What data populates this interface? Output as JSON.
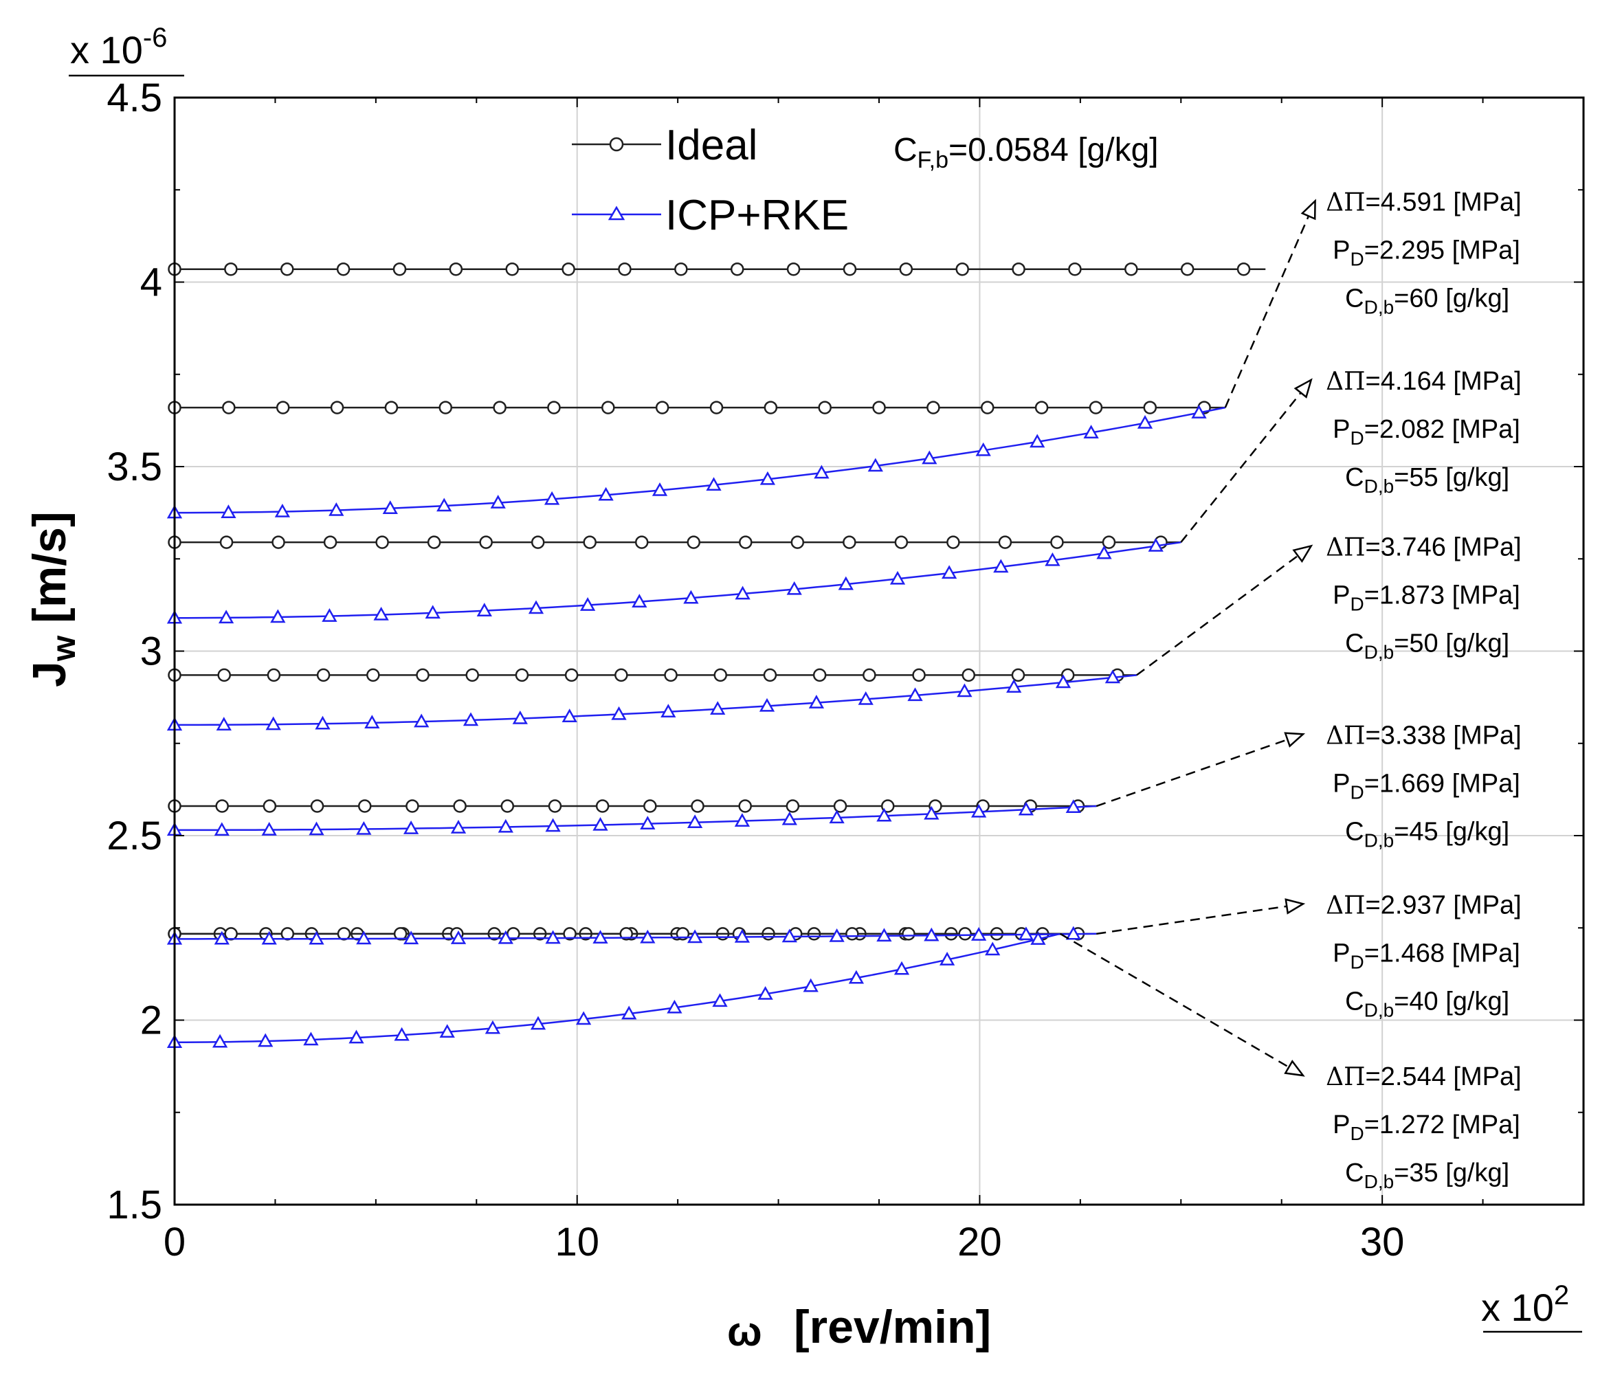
{
  "colors": {
    "ideal": "#202020",
    "icp": "#1f1ff0",
    "grid": "#d2d2d2",
    "axis": "#000000"
  },
  "chart_data": {
    "type": "line",
    "xlabel_symbol": "ω",
    "xlabel_unit": "[rev/min]",
    "x_multiplier": "x 10",
    "x_multiplier_exp": "2",
    "ylabel_main": "J",
    "ylabel_sub": "w",
    "ylabel_unit": "[m/s]",
    "y_multiplier": "x 10",
    "y_multiplier_exp": "-6",
    "xlim": [
      0,
      35
    ],
    "ylim": [
      1.5,
      4.5
    ],
    "xticks": [
      0,
      10,
      20,
      30
    ],
    "xtick_labels": [
      "0",
      "10",
      "20",
      "30"
    ],
    "yticks": [
      1.5,
      2,
      2.5,
      3,
      3.5,
      4,
      4.5
    ],
    "ytick_labels": [
      "1.5",
      "2",
      "2.5",
      "3",
      "3.5",
      "4",
      "4.5"
    ],
    "grid": true,
    "legend": [
      {
        "label": "Ideal",
        "marker": "circle"
      },
      {
        "label": "ICP+RKE",
        "marker": "triangle"
      }
    ],
    "feed_annotation": {
      "prefix": "C",
      "sub": "F,b",
      "text": "=0.0584 [g/kg]"
    },
    "cases": [
      {
        "ideal": 2.234,
        "icp_start": 1.94,
        "x_end": 22.0,
        "n_ideal": 20,
        "n_icp": 20,
        "dpi": "=2.544 [MPa]",
        "pd": "=1.272 [MPa]",
        "cdb": "=35 [g/kg]",
        "arrow_target": [
          28.0,
          1.85
        ]
      },
      {
        "ideal": 2.234,
        "icp_start": 2.22,
        "x_end": 22.9,
        "n_ideal": 17,
        "n_icp": 20,
        "dpi": "=2.937 [MPa]",
        "pd": "=1.468 [MPa]",
        "cdb": "=40 [g/kg]",
        "arrow_target": [
          28.0,
          2.315
        ]
      },
      {
        "ideal": 2.58,
        "icp_start": 2.515,
        "x_end": 22.9,
        "n_ideal": 20,
        "n_icp": 20,
        "dpi": "=3.338 [MPa]",
        "pd": "=1.669 [MPa]",
        "cdb": "=45 [g/kg]",
        "arrow_target": [
          28.0,
          2.775
        ]
      },
      {
        "ideal": 2.935,
        "icp_start": 2.8,
        "x_end": 23.9,
        "n_ideal": 20,
        "n_icp": 20,
        "dpi": "=3.746 [MPa]",
        "pd": "=1.873 [MPa]",
        "cdb": "=50 [g/kg]",
        "arrow_target": [
          28.2,
          3.285
        ]
      },
      {
        "ideal": 3.295,
        "icp_start": 3.09,
        "x_end": 25.0,
        "n_ideal": 20,
        "n_icp": 20,
        "dpi": "=4.164 [MPa]",
        "pd": "=2.082 [MPa]",
        "cdb": "=55 [g/kg]",
        "arrow_target": [
          28.2,
          3.735
        ]
      },
      {
        "ideal": 3.66,
        "icp_start": 3.375,
        "x_end": 26.1,
        "n_ideal": 20,
        "n_icp": 20,
        "dpi": "=4.591 [MPa]",
        "pd": "=2.295 [MPa]",
        "cdb": "=60 [g/kg]",
        "arrow_target": [
          28.3,
          4.22
        ]
      },
      {
        "ideal": 4.035,
        "icp_start": null,
        "x_end": 27.1,
        "n_ideal": 20,
        "n_icp": 0
      }
    ]
  }
}
